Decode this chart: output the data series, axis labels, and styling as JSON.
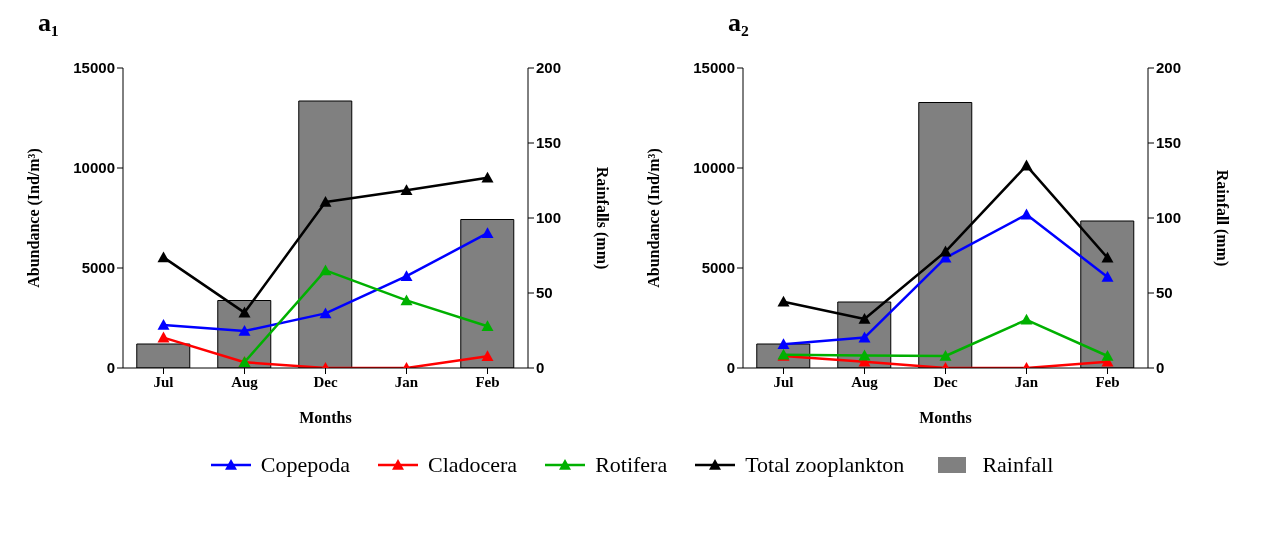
{
  "chart_data": [
    {
      "type": "line",
      "title": "a₁",
      "xlabel": "Months",
      "ylabel": "Abundance (Ind/m³)",
      "y2label": "Rainfalls (mm)",
      "categories": [
        "Jul",
        "Aug",
        "Dec",
        "Jan",
        "Feb"
      ],
      "ylim": [
        0,
        15000
      ],
      "yticks": [
        0,
        5000,
        10000,
        15000
      ],
      "y2lim": [
        0,
        200
      ],
      "y2ticks": [
        0,
        50,
        100,
        150,
        200
      ],
      "legend": "bottom",
      "marker": "triangle",
      "line_style": "solid",
      "series": [
        {
          "name": "Rainfall",
          "type": "bar",
          "axis": "y2",
          "color": "#808080",
          "values": [
            16,
            45,
            178,
            null,
            99
          ]
        },
        {
          "name": "Copepoda",
          "color": "#0000ff",
          "values": [
            2150,
            1850,
            2730,
            4590,
            6740
          ]
        },
        {
          "name": "Cladocera",
          "color": "#ff0000",
          "values": [
            1520,
            290,
            0,
            0,
            590
          ]
        },
        {
          "name": "Rotifera",
          "color": "#00b000",
          "values": [
            null,
            290,
            4880,
            3380,
            2090
          ]
        },
        {
          "name": "Total zooplankton",
          "color": "#000000",
          "values": [
            5530,
            2770,
            8300,
            8890,
            9510
          ]
        }
      ]
    },
    {
      "type": "line",
      "title": "a₂",
      "xlabel": "Months",
      "ylabel": "Abundance (Ind/m³)",
      "y2label": "Rainfall (mm)",
      "categories": [
        "Jul",
        "Aug",
        "Dec",
        "Jan",
        "Feb"
      ],
      "ylim": [
        0,
        15000
      ],
      "yticks": [
        0,
        5000,
        10000,
        15000
      ],
      "y2lim": [
        0,
        200
      ],
      "y2ticks": [
        0,
        50,
        100,
        150,
        200
      ],
      "marker": "triangle",
      "line_style": "solid",
      "series": [
        {
          "type": "bar",
          "axis": "y2",
          "color": "#808080",
          "values": [
            16,
            44,
            177,
            null,
            98
          ]
        },
        {
          "color": "#0000ff",
          "values": [
            1190,
            1520,
            5510,
            7670,
            4550
          ]
        },
        {
          "color": "#ff0000",
          "values": [
            600,
            310,
            0,
            0,
            310
          ]
        },
        {
          "color": "#00b000",
          "values": [
            660,
            620,
            600,
            2410,
            600
          ]
        },
        {
          "color": "#000000",
          "values": [
            3310,
            2450,
            5820,
            10120,
            5510
          ]
        }
      ]
    }
  ]
}
